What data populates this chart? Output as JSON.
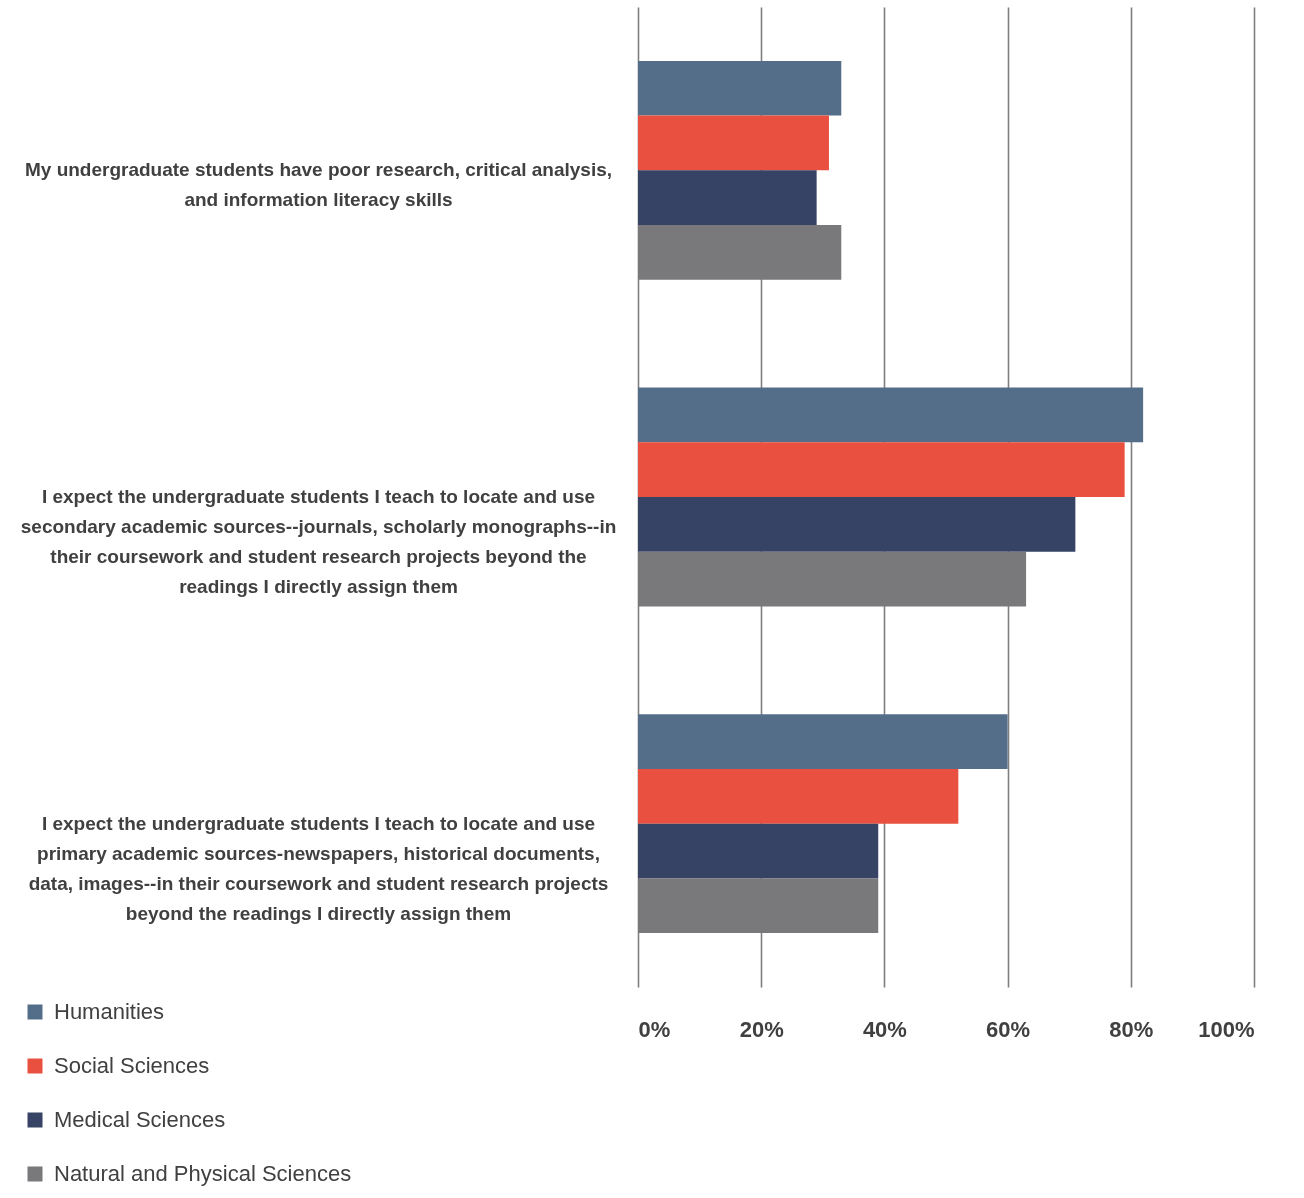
{
  "chart_data": {
    "type": "bar",
    "orientation": "horizontal",
    "categories": [
      "My undergraduate students have poor research, critical analysis, and information literacy skills",
      "I expect the undergraduate students I teach to locate and use secondary academic sources--journals, scholarly monographs--in their coursework and student research projects beyond the readings I directly assign them",
      "I expect the undergraduate students I teach to locate and use primary academic sources-newspapers, historical documents, data, images--in their coursework and student research projects beyond the readings I directly assign them"
    ],
    "series": [
      {
        "name": "Humanities",
        "color": "#546e8a",
        "values": [
          33,
          82,
          60
        ]
      },
      {
        "name": "Social Sciences",
        "color": "#e9503f",
        "values": [
          31,
          79,
          52
        ]
      },
      {
        "name": "Medical Sciences",
        "color": "#364365",
        "values": [
          29,
          71,
          39
        ]
      },
      {
        "name": "Natural and Physical Sciences",
        "color": "#79797c",
        "values": [
          33,
          63,
          39
        ]
      }
    ],
    "xlim": [
      0,
      100
    ],
    "xticks": [
      {
        "value": 0,
        "label": "0%"
      },
      {
        "value": 20,
        "label": "20%"
      },
      {
        "value": 40,
        "label": "40%"
      },
      {
        "value": 60,
        "label": "60%"
      },
      {
        "value": 80,
        "label": "80%"
      },
      {
        "value": 100,
        "label": "100%"
      }
    ],
    "grid": "x",
    "legend": "bottom left"
  }
}
